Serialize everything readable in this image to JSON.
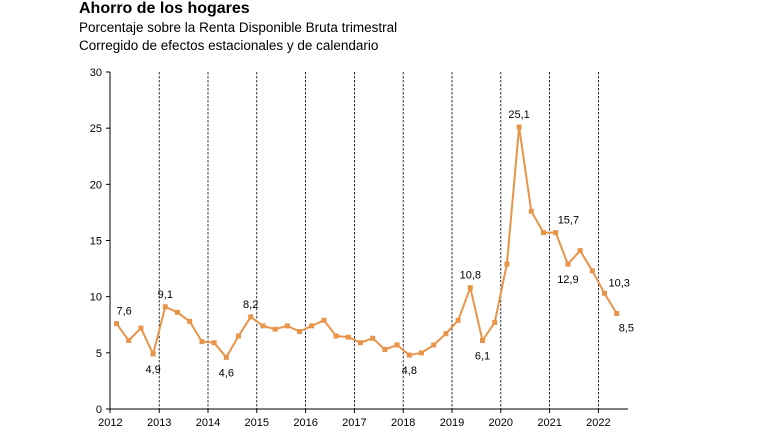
{
  "chart_data": {
    "type": "line",
    "title": "Ahorro de los hogares",
    "subtitle": [
      "Porcentaje sobre la Renta Disponible Bruta trimestral",
      "Corregido de efectos estacionales y de calendario"
    ],
    "xlabel": "",
    "ylabel": "",
    "ylim": [
      0,
      30
    ],
    "yticks": [
      0,
      5,
      10,
      15,
      20,
      25,
      30
    ],
    "year_labels": [
      "2012",
      "2013",
      "2014",
      "2015",
      "2016",
      "2017",
      "2018",
      "2019",
      "2020",
      "2021",
      "2022"
    ],
    "grid": "dashed vertical lines at year boundaries",
    "line_color": "#E8954A",
    "series": [
      {
        "quarters": [
          "2012T1",
          "2012T2",
          "2012T3",
          "2012T4",
          "2013T1",
          "2013T2",
          "2013T3",
          "2013T4",
          "2014T1",
          "2014T2",
          "2014T3",
          "2014T4",
          "2015T1",
          "2015T2",
          "2015T3",
          "2015T4",
          "2016T1",
          "2016T2",
          "2016T3",
          "2016T4",
          "2017T1",
          "2017T2",
          "2017T3",
          "2017T4",
          "2018T1",
          "2018T2",
          "2018T3",
          "2018T4",
          "2019T1",
          "2019T2",
          "2019T3",
          "2019T4",
          "2020T1",
          "2020T2",
          "2020T3",
          "2020T4",
          "2021T1",
          "2021T2",
          "2021T3",
          "2021T4",
          "2022T1",
          "2022T2"
        ],
        "values": [
          7.6,
          6.1,
          7.2,
          4.9,
          9.1,
          8.6,
          7.8,
          6.0,
          5.9,
          4.6,
          6.5,
          8.2,
          7.4,
          7.1,
          7.4,
          6.9,
          7.4,
          7.9,
          6.5,
          6.4,
          5.9,
          6.3,
          5.3,
          5.7,
          4.8,
          5.0,
          5.7,
          6.7,
          7.9,
          10.8,
          6.1,
          7.7,
          12.9,
          25.1,
          17.6,
          15.7,
          15.7,
          12.9,
          14.1,
          12.3,
          10.3,
          8.5
        ]
      }
    ],
    "data_labels": [
      {
        "index": 0,
        "text": "7,6"
      },
      {
        "index": 3,
        "text": "4,9"
      },
      {
        "index": 4,
        "text": "9,1"
      },
      {
        "index": 9,
        "text": "4,6"
      },
      {
        "index": 11,
        "text": "8,2"
      },
      {
        "index": 24,
        "text": "4,8"
      },
      {
        "index": 29,
        "text": "10,8"
      },
      {
        "index": 30,
        "text": "6,1"
      },
      {
        "index": 33,
        "text": "25,1"
      },
      {
        "index": 36,
        "text": "15,7"
      },
      {
        "index": 37,
        "text": "12,9"
      },
      {
        "index": 40,
        "text": "10,3"
      },
      {
        "index": 41,
        "text": "8,5"
      }
    ]
  }
}
